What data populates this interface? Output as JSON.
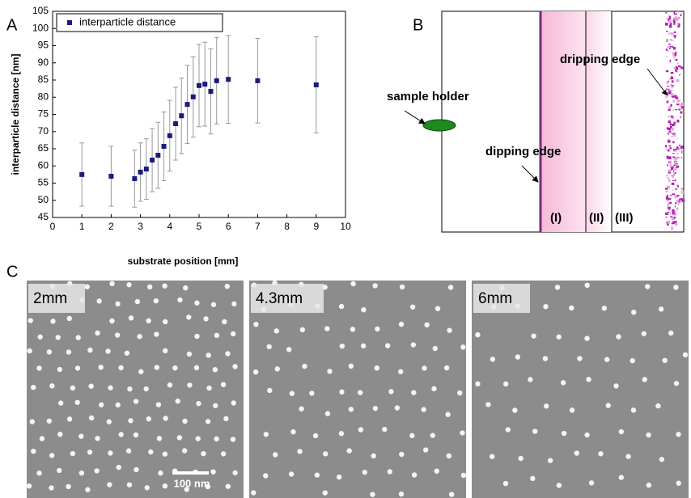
{
  "chart_data": {
    "type": "errorbar_scatter",
    "x_label": "substrate position [mm]",
    "y_label": "interparticle distance [nm]",
    "xlim": [
      0,
      10
    ],
    "ylim": [
      45,
      105
    ],
    "xticks": [
      0,
      1,
      2,
      3,
      4,
      5,
      6,
      7,
      8,
      9,
      10
    ],
    "yticks": [
      45,
      50,
      55,
      60,
      65,
      70,
      75,
      80,
      85,
      90,
      95,
      100,
      105
    ],
    "legend": "upper left",
    "series": [
      {
        "name": "interparticle distance",
        "color": "#1a1a80",
        "error_color": "#999999",
        "x": [
          1,
          2,
          2.8,
          3,
          3.2,
          3.4,
          3.6,
          3.8,
          4,
          4.2,
          4.4,
          4.6,
          4.8,
          5,
          5.2,
          5.4,
          5.6,
          6,
          7,
          9
        ],
        "values": [
          57.5,
          57,
          56.3,
          58.2,
          59.1,
          61.7,
          63.1,
          65.7,
          68.8,
          72.3,
          74.6,
          77.9,
          80.1,
          83.4,
          83.8,
          81.7,
          84.8,
          85.2,
          84.8,
          83.6
        ],
        "errors": [
          9.2,
          8.7,
          8.3,
          8.5,
          8.8,
          9.2,
          9.6,
          10,
          10.3,
          10.6,
          11,
          11.4,
          11.7,
          12,
          12.2,
          12.4,
          12.6,
          12.8,
          12.3,
          14
        ]
      }
    ]
  },
  "panels": {
    "a": "A",
    "b": "B",
    "c": "C"
  },
  "diagram": {
    "sample_holder": "sample holder",
    "dipping_edge": "dipping edge",
    "dripping_edge": "dripping edge",
    "regions": [
      "(I)",
      "(II)",
      "(III)"
    ]
  },
  "images": [
    {
      "label": "2mm"
    },
    {
      "label": "4.3mm"
    },
    {
      "label": "6mm"
    }
  ],
  "scale_bar": "100 nm"
}
